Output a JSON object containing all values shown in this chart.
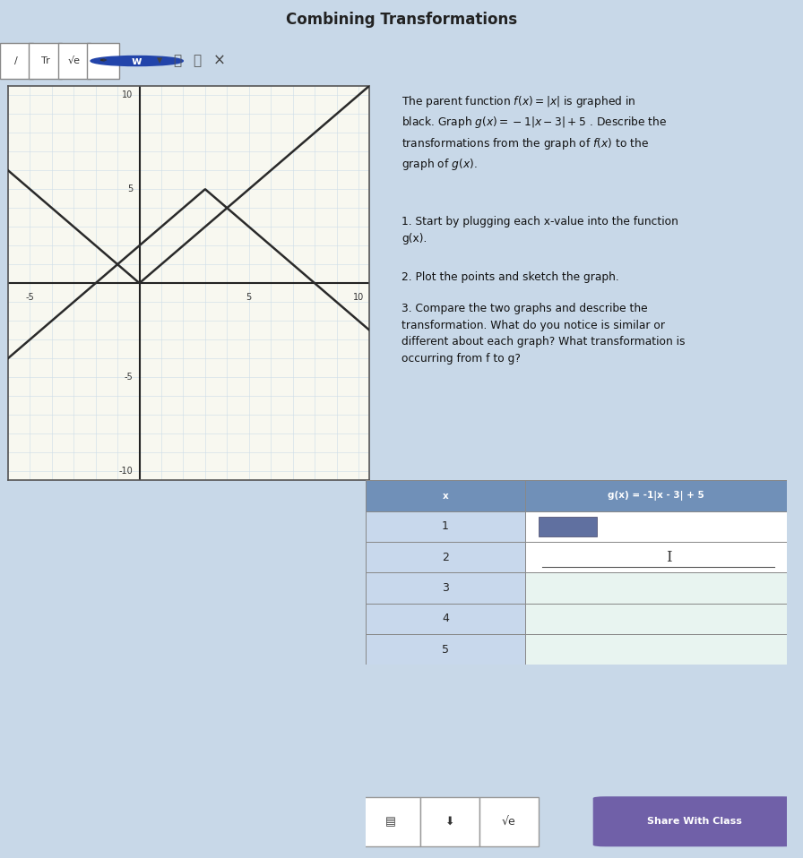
{
  "title": "Combining Transformations",
  "f_color": "#2a2a2a",
  "g_color": "#2a2a2a",
  "grid_bg_color": "#f8f8f0",
  "grid_line_color_major": "#aabbcc",
  "grid_line_color_minor": "#ccdde8",
  "axis_color": "#222222",
  "table_header_bg": "#7090b8",
  "table_row_bg_odd": "#c8d8ec",
  "table_row_bg_even": "#dce8f4",
  "table_right_bg_1": "#ffffff",
  "table_right_bg_2": "#e8f4f0",
  "toolbar_bg": "#c8d0d8",
  "share_btn_color": "#7060a8",
  "share_btn_text": "Share With Class",
  "answer_box_bg": "#eef4f4",
  "page_bg": "#c8d8e8",
  "table_header_x": "x",
  "table_header_gx": "g(x) = -1|x - 3| + 5",
  "table_x_values": [
    1,
    2,
    3,
    4,
    5
  ],
  "step1": "1. Start by plugging each x-value into the function\ng(x).",
  "step2": "2. Plot the points and sketch the graph.",
  "step3": "3. Compare the two graphs and describe the\ntransformation. What do you notice is similar or\ndifferent about each graph? What transformation is\noccurring from f to g?",
  "grid_xlim": [
    -6,
    10.5
  ],
  "grid_ylim": [
    -10.5,
    10.5
  ],
  "xtick_vals": [
    -5,
    0,
    5,
    10
  ],
  "ytick_vals": [
    -10,
    -5,
    5,
    10
  ]
}
